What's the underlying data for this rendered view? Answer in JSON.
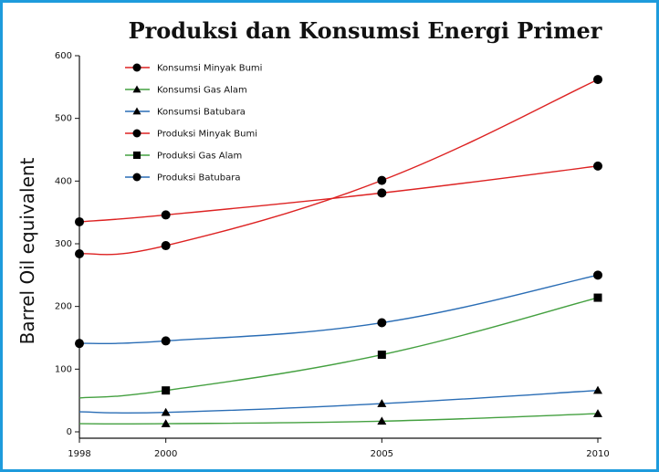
{
  "chart_data": {
    "type": "line",
    "title": "Produksi dan Konsumsi Energi Primer",
    "xlabel": "",
    "ylabel": "Barrel Oil equivalent",
    "x": [
      1998,
      2000,
      2005,
      2010
    ],
    "x_tick_labels": [
      "1998",
      "2000",
      "2005",
      "2010"
    ],
    "y_ticks": [
      0,
      100,
      200,
      300,
      400,
      500,
      600
    ],
    "y_tick_labels": [
      "0",
      "100",
      "200",
      "300",
      "400",
      "500",
      "600"
    ],
    "ylim": [
      0,
      600
    ],
    "grid": false,
    "legend_position": "top-left",
    "series": [
      {
        "name": "Konsumsi Minyak Bumi",
        "color": "#dd2222",
        "marker": "circle",
        "values": [
          335,
          346,
          381,
          424
        ]
      },
      {
        "name": "Konsumsi Gas Alam",
        "color": "#44a040",
        "marker": "triangle",
        "values": [
          13,
          13,
          17,
          29
        ]
      },
      {
        "name": "Konsumsi Batubara",
        "color": "#2a6db5",
        "marker": "triangle",
        "values": [
          32,
          31,
          45,
          66
        ]
      },
      {
        "name": "Produksi Minyak Bumi",
        "color": "#dd2222",
        "marker": "circle",
        "values": [
          284,
          297,
          401,
          562
        ]
      },
      {
        "name": "Produksi Gas Alam",
        "color": "#44a040",
        "marker": "square",
        "values": [
          54,
          66,
          123,
          214
        ]
      },
      {
        "name": "Produksi Batubara",
        "color": "#2a6db5",
        "marker": "circle",
        "values": [
          141,
          145,
          174,
          250
        ]
      }
    ],
    "points_drawn": [
      [
        true,
        true,
        true,
        true
      ],
      [
        false,
        true,
        true,
        true
      ],
      [
        false,
        true,
        true,
        true
      ],
      [
        true,
        true,
        true,
        true
      ],
      [
        false,
        true,
        true,
        true
      ],
      [
        true,
        true,
        true,
        true
      ]
    ]
  }
}
